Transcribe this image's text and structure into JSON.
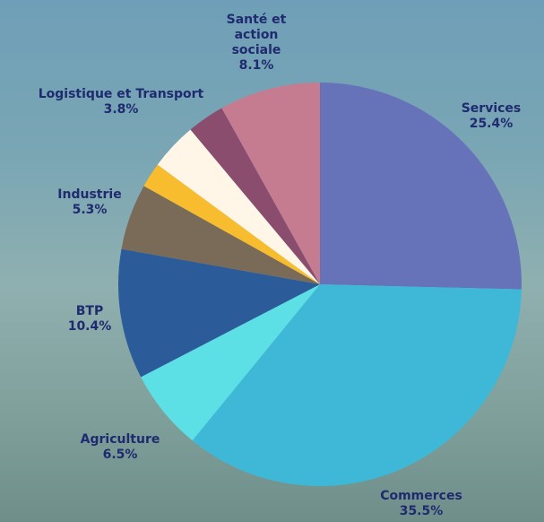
{
  "chart_data": {
    "type": "pie",
    "categories": [
      "Services",
      "Commerces",
      "Agriculture",
      "BTP",
      "Industrie",
      null,
      "Logistique et Transport",
      null,
      "Santé et action sociale"
    ],
    "values": [
      25.4,
      35.5,
      6.5,
      10.4,
      5.3,
      2.0,
      3.8,
      3.0,
      8.1
    ],
    "value_labels": [
      "25.4%",
      "35.5%",
      "6.5%",
      "10.4%",
      "5.3%",
      null,
      "3.8%",
      null,
      "8.1%"
    ],
    "colors": [
      "#6673b8",
      "#3fb8d8",
      "#5ce0e6",
      "#2b5c99",
      "#7a6b58",
      "#f8bd2e",
      "#fff6e8",
      "#8a4d6d",
      "#c57c91"
    ]
  }
}
